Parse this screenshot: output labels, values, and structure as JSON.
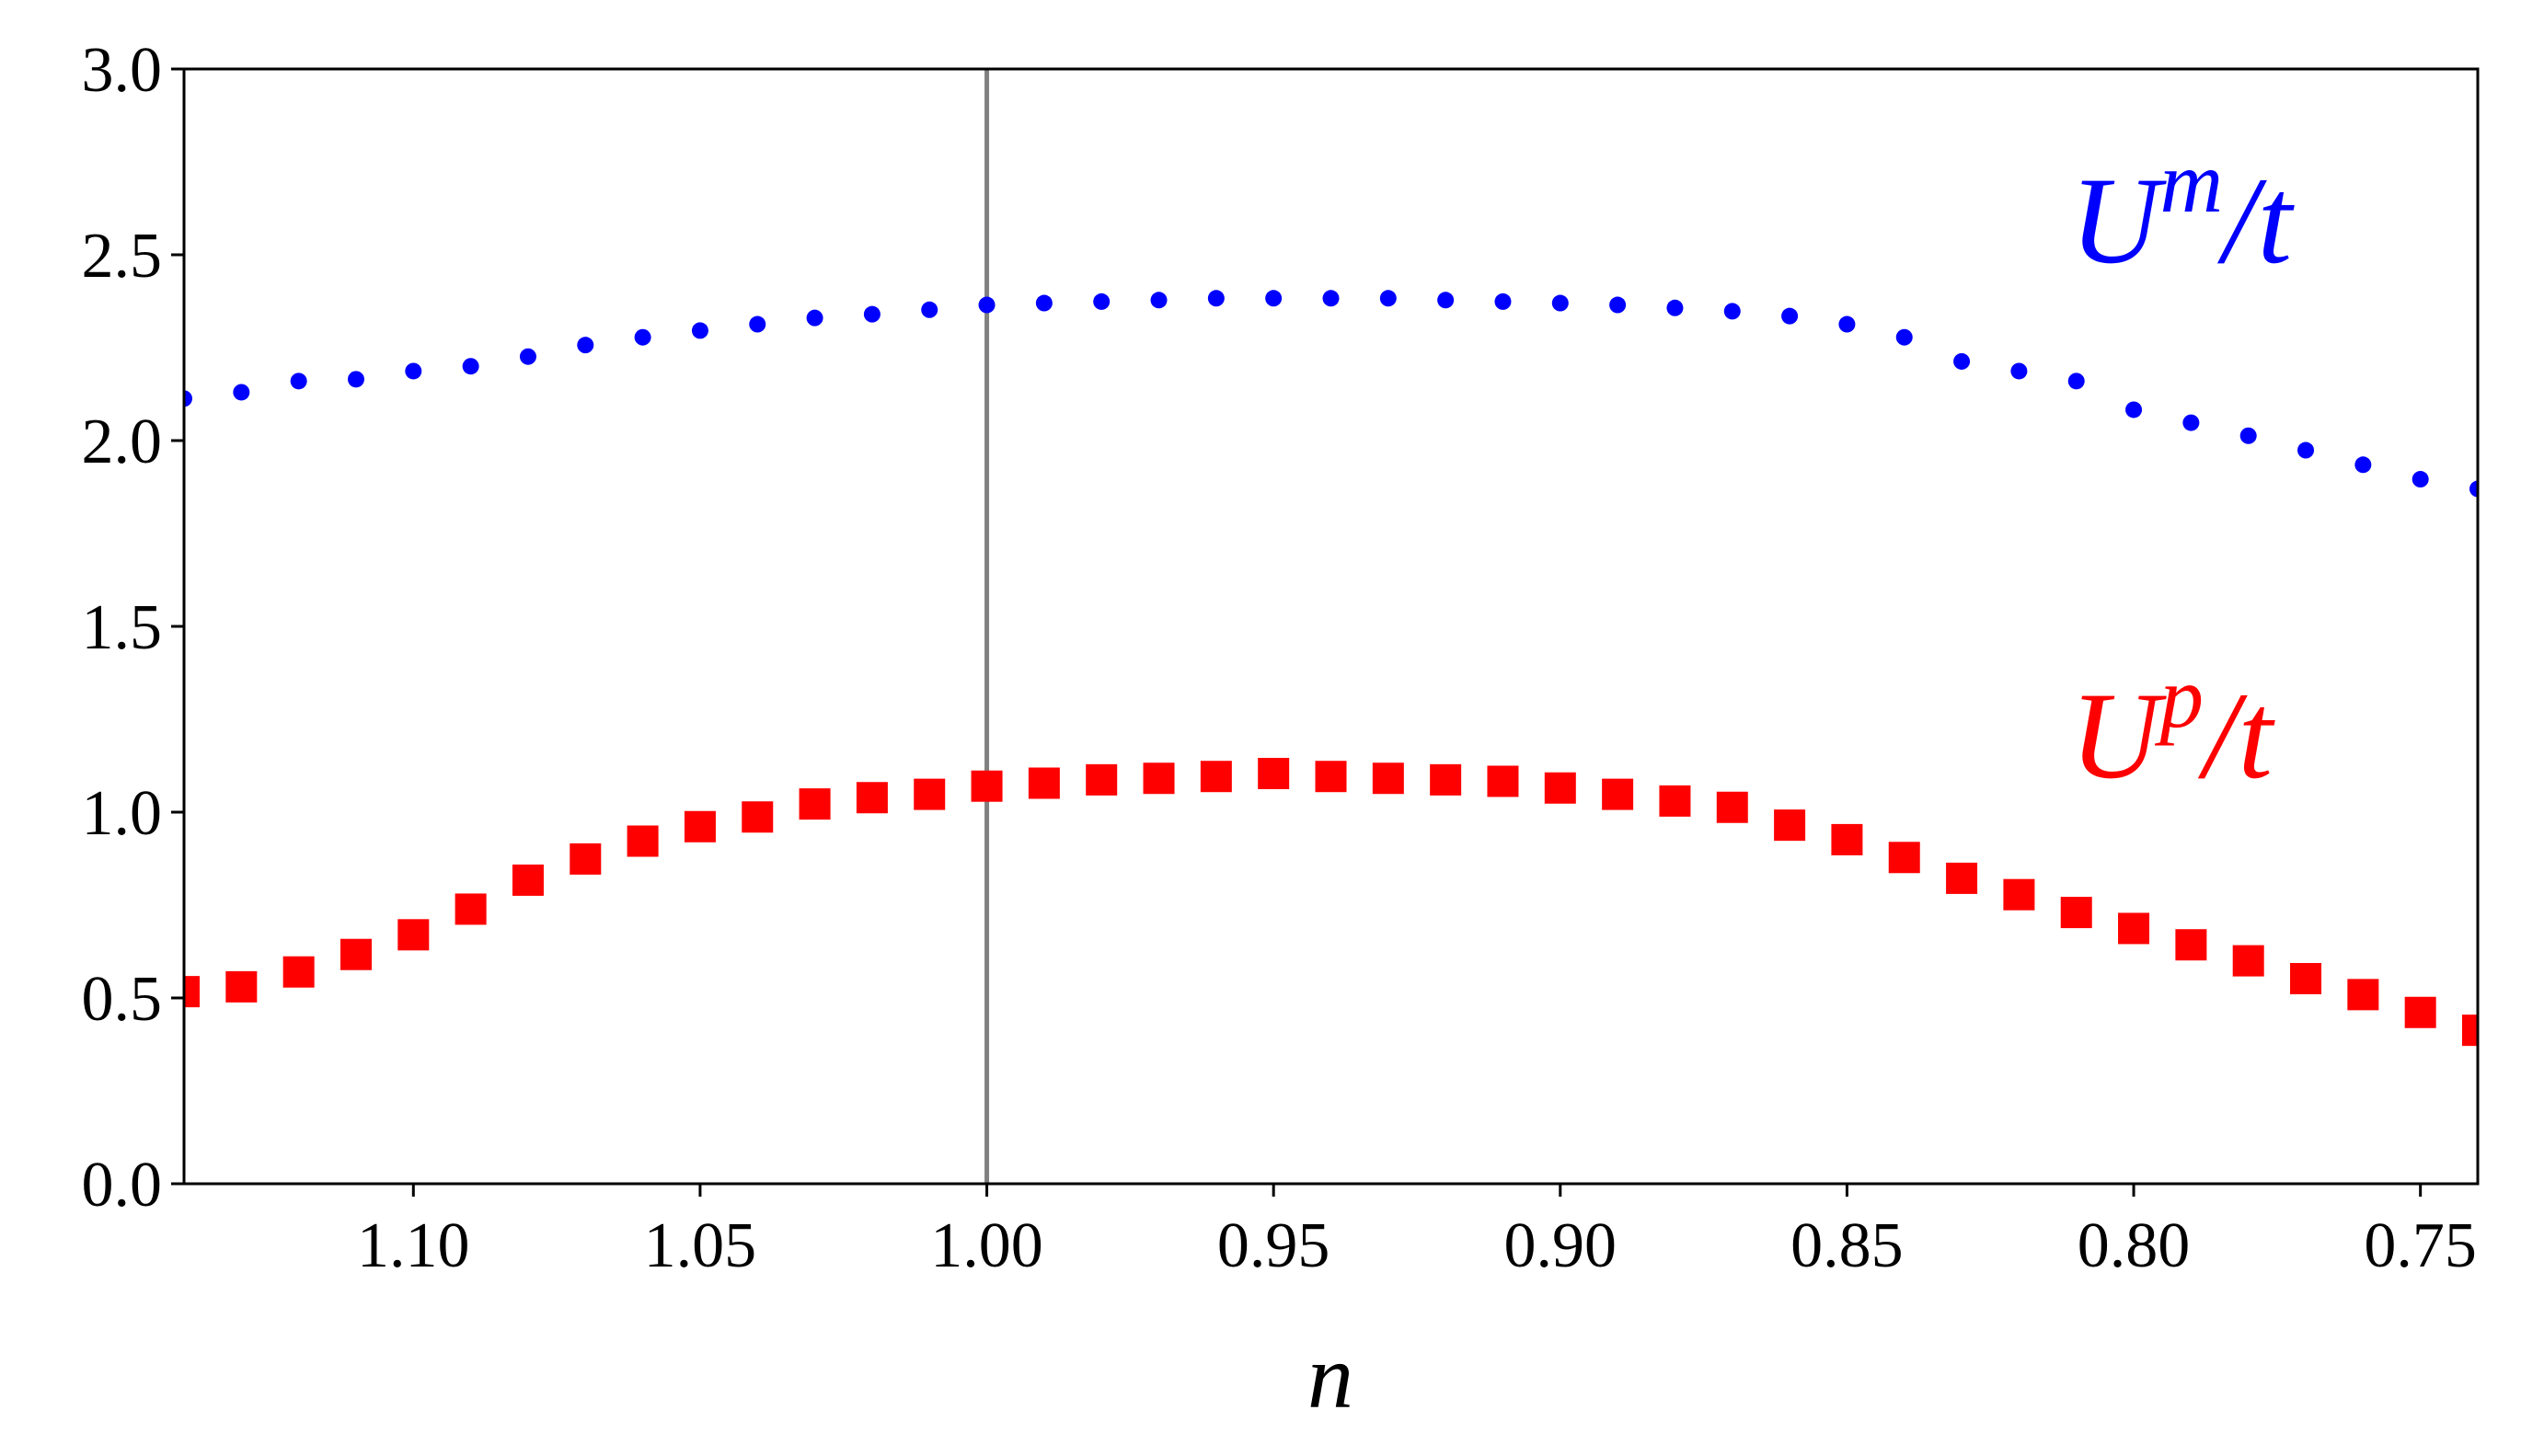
{
  "chart_data": {
    "type": "scatter",
    "xlabel": "n",
    "x": [
      1.14,
      1.13,
      1.12,
      1.11,
      1.1,
      1.09,
      1.08,
      1.07,
      1.06,
      1.05,
      1.04,
      1.03,
      1.02,
      1.01,
      1.0,
      0.99,
      0.98,
      0.97,
      0.96,
      0.95,
      0.94,
      0.93,
      0.92,
      0.91,
      0.9,
      0.89,
      0.88,
      0.87,
      0.86,
      0.85,
      0.84,
      0.83,
      0.82,
      0.81,
      0.8,
      0.79,
      0.78,
      0.77,
      0.76,
      0.75,
      0.74
    ],
    "series": [
      {
        "name": "Um/t",
        "color": "#0000ff",
        "marker": "circle",
        "values": [
          2.113,
          2.13,
          2.16,
          2.165,
          2.187,
          2.2,
          2.226,
          2.257,
          2.278,
          2.296,
          2.313,
          2.33,
          2.34,
          2.352,
          2.365,
          2.37,
          2.374,
          2.378,
          2.383,
          2.383,
          2.383,
          2.383,
          2.378,
          2.374,
          2.37,
          2.365,
          2.357,
          2.348,
          2.335,
          2.313,
          2.278,
          2.213,
          2.187,
          2.16,
          2.083,
          2.048,
          2.013,
          1.974,
          1.935,
          1.896,
          1.87
        ]
      },
      {
        "name": "Up/t",
        "color": "#ff0000",
        "marker": "square",
        "values": [
          0.517,
          0.53,
          0.57,
          0.617,
          0.67,
          0.739,
          0.817,
          0.874,
          0.922,
          0.961,
          0.987,
          1.022,
          1.039,
          1.048,
          1.07,
          1.078,
          1.087,
          1.091,
          1.096,
          1.104,
          1.096,
          1.091,
          1.087,
          1.083,
          1.065,
          1.048,
          1.03,
          1.013,
          0.965,
          0.926,
          0.878,
          0.822,
          0.778,
          0.73,
          0.687,
          0.643,
          0.6,
          0.552,
          0.509,
          0.461,
          0.413
        ]
      }
    ],
    "annotations": [
      {
        "base": "U",
        "superscript": "m",
        "suffix": "/t",
        "color": "#0000ff"
      },
      {
        "base": "U",
        "superscript": "p",
        "suffix": "/t",
        "color": "#ff0000"
      }
    ],
    "vline": {
      "x": 1.0,
      "color": "#808080"
    },
    "xlim": [
      1.14,
      0.74
    ],
    "ylim": [
      0,
      3
    ],
    "xticks": [
      {
        "value": 1.1,
        "label": "1.10"
      },
      1.05,
      {
        "value": 1.0,
        "label": "1.00"
      },
      0.95,
      {
        "value": 0.9,
        "label": "0.90"
      },
      0.85,
      {
        "value": 0.8,
        "label": "0.80"
      },
      0.75
    ],
    "yticks": [
      {
        "value": 0,
        "label": "0.0"
      },
      0.5,
      {
        "value": 1,
        "label": "1.0"
      },
      1.5,
      {
        "value": 2,
        "label": "2.0"
      },
      2.5,
      {
        "value": 3,
        "label": "3.0"
      }
    ],
    "grid": false
  }
}
